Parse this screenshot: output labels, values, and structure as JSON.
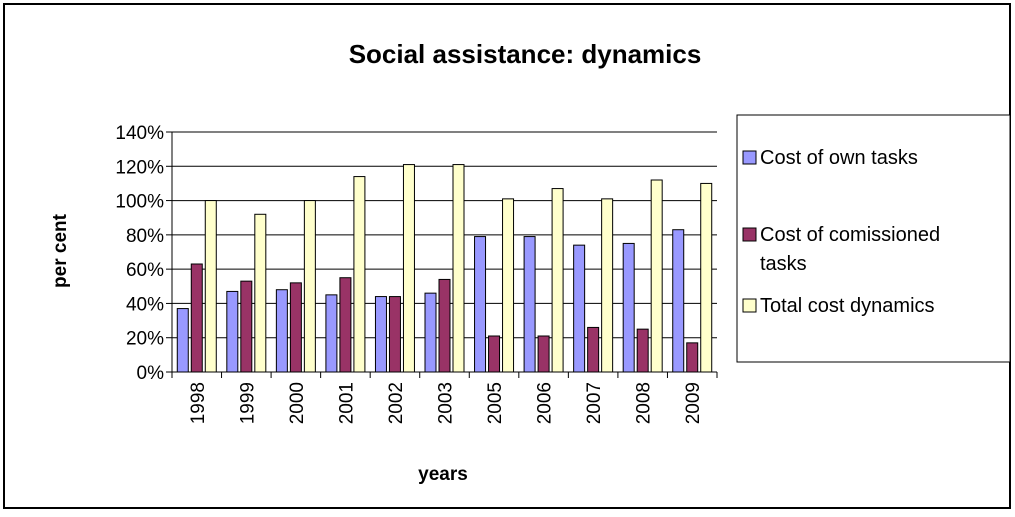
{
  "chart_data": {
    "type": "bar",
    "title": "Social assistance: dynamics",
    "xlabel": "years",
    "ylabel": "per cent",
    "ylim": [
      0,
      140
    ],
    "y_tick_step": 20,
    "y_tick_suffix": "%",
    "grid": "horizontal",
    "legend_position": "right",
    "categories": [
      "1998",
      "1999",
      "2000",
      "2001",
      "2002",
      "2003",
      "2005",
      "2006",
      "2007",
      "2008",
      "2009"
    ],
    "series": [
      {
        "name": "Cost of own tasks",
        "color": "#9999ff",
        "values": [
          37,
          47,
          48,
          45,
          44,
          46,
          79,
          79,
          74,
          75,
          83
        ]
      },
      {
        "name": "Cost of comissioned tasks",
        "color": "#993366",
        "values": [
          63,
          53,
          52,
          55,
          44,
          54,
          21,
          21,
          26,
          25,
          17
        ]
      },
      {
        "name": "Total cost dynamics",
        "color": "#ffffcc",
        "values": [
          100,
          92,
          100,
          114,
          121,
          121,
          101,
          107,
          101,
          112,
          110
        ]
      }
    ]
  }
}
